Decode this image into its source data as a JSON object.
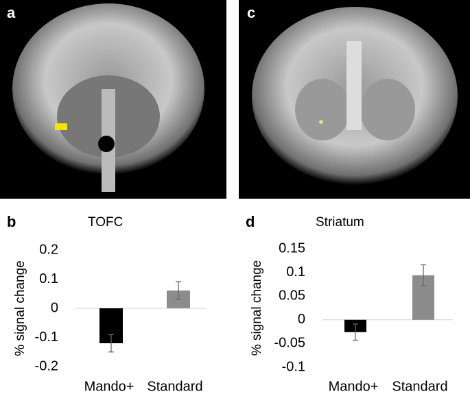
{
  "images": [
    {
      "label": "a"
    },
    {
      "label": "c"
    }
  ],
  "chart_data": [
    {
      "type": "bar",
      "panel_label": "b",
      "title": "TOFC",
      "ylabel": "% signal change",
      "categories": [
        "Mando+",
        "Standard"
      ],
      "values": [
        -0.12,
        0.061
      ],
      "errors": [
        0.03,
        0.03
      ],
      "colors": [
        "#000000",
        "#8c8c8c"
      ],
      "ylim": [
        -0.2,
        0.2
      ],
      "yticks": [
        -0.2,
        -0.1,
        0,
        0.1,
        0.2
      ]
    },
    {
      "type": "bar",
      "panel_label": "d",
      "title": "Striatum",
      "ylabel": "% signal change",
      "categories": [
        "Mando+",
        "Standard"
      ],
      "values": [
        -0.026,
        0.094
      ],
      "errors": [
        0.017,
        0.022
      ],
      "colors": [
        "#000000",
        "#8c8c8c"
      ],
      "ylim": [
        -0.1,
        0.15
      ],
      "yticks": [
        -0.1,
        -0.05,
        0,
        0.05,
        0.1,
        0.15
      ]
    }
  ]
}
